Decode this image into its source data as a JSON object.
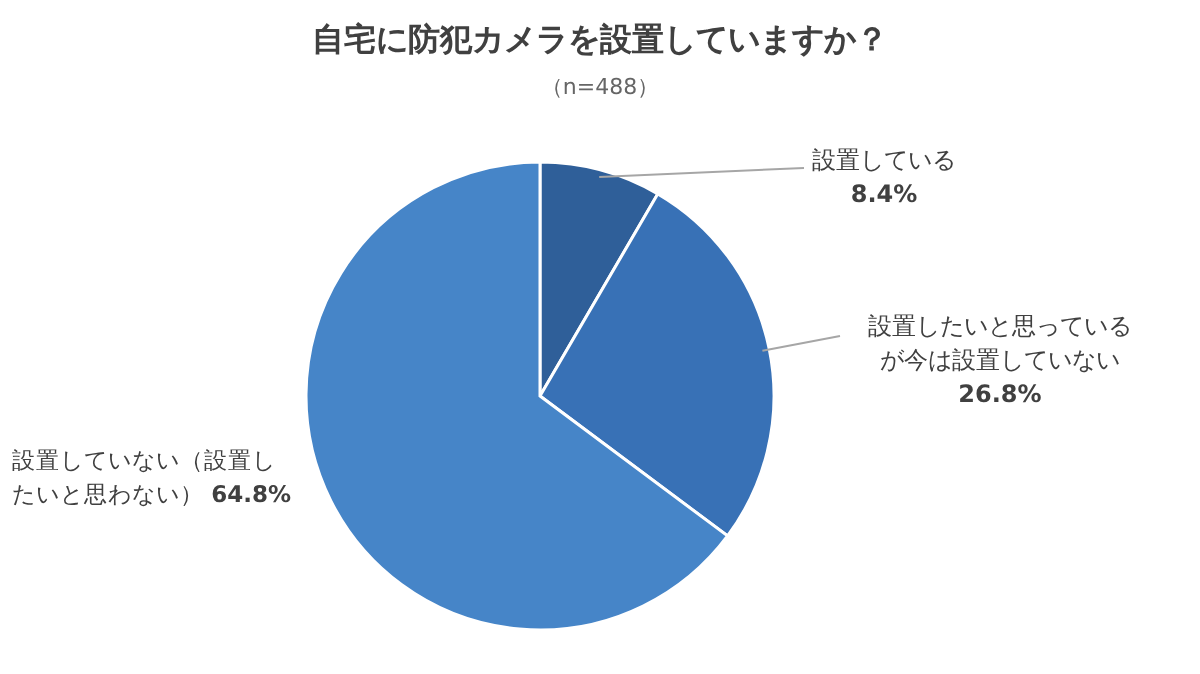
{
  "chart_data": {
    "type": "pie",
    "title": "自宅に防犯カメラを設置していますか？",
    "subtitle": "（n=488）",
    "categories": [
      "設置している",
      "設置したいと思っているが今は設置していない",
      "設置していない（設置したいと思わない）"
    ],
    "values": [
      8.4,
      26.8,
      64.8
    ],
    "value_labels": [
      "8.4%",
      "26.8%",
      "64.8%"
    ],
    "colors": [
      "#2f5f99",
      "#3871b6",
      "#4685c8"
    ]
  }
}
